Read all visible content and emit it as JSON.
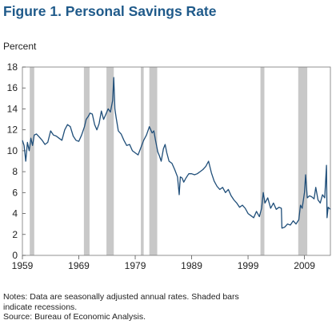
{
  "chart_data": {
    "type": "line",
    "title": "Figure 1. Personal Savings Rate",
    "ylabel": "Percent",
    "xlabel": "",
    "xlim": [
      1959,
      2013.6
    ],
    "ylim": [
      0,
      18
    ],
    "yticks": [
      0,
      2,
      4,
      6,
      8,
      10,
      12,
      14,
      16,
      18
    ],
    "xticks": [
      1959,
      1969,
      1979,
      1989,
      1999,
      2009
    ],
    "grid": false,
    "legend": "none",
    "line_color": "#1f4e79",
    "recession_color": "#c8c8c8",
    "recessions": [
      [
        1960.3,
        1961.1
      ],
      [
        1969.9,
        1970.9
      ],
      [
        1973.9,
        1975.2
      ],
      [
        1980.0,
        1980.5
      ],
      [
        1981.5,
        1982.9
      ],
      [
        2001.2,
        2001.9
      ],
      [
        2007.9,
        2009.5
      ]
    ],
    "series": [
      {
        "x": [
          1959.0,
          1959.3,
          1959.6,
          1959.9,
          1960.2,
          1960.5,
          1960.8,
          1961.1,
          1961.5,
          1962.0,
          1962.5,
          1963.0,
          1963.5,
          1964.0,
          1964.5,
          1965.0,
          1965.5,
          1966.0,
          1966.5,
          1967.0,
          1967.5,
          1968.0,
          1968.5,
          1969.0,
          1969.5,
          1970.0,
          1970.3,
          1970.7,
          1971.0,
          1971.4,
          1971.8,
          1972.2,
          1972.6,
          1973.0,
          1973.4,
          1973.8,
          1974.2,
          1974.6,
          1975.0,
          1975.2,
          1975.4,
          1975.6,
          1976.0,
          1976.5,
          1977.0,
          1977.5,
          1978.0,
          1978.5,
          1979.0,
          1979.5,
          1980.0,
          1980.5,
          1981.0,
          1981.5,
          1982.0,
          1982.3,
          1982.6,
          1983.0,
          1983.3,
          1983.6,
          1984.0,
          1984.3,
          1984.6,
          1985.0,
          1985.5,
          1986.0,
          1986.5,
          1986.8,
          1987.0,
          1987.3,
          1987.6,
          1988.0,
          1988.5,
          1989.0,
          1989.5,
          1990.0,
          1990.5,
          1991.0,
          1991.5,
          1992.0,
          1992.5,
          1993.0,
          1993.5,
          1994.0,
          1994.5,
          1995.0,
          1995.5,
          1996.0,
          1996.5,
          1997.0,
          1997.5,
          1998.0,
          1998.5,
          1999.0,
          1999.5,
          2000.0,
          2000.5,
          2001.0,
          2001.4,
          2001.7,
          2002.0,
          2002.5,
          2003.0,
          2003.5,
          2004.0,
          2004.5,
          2004.9,
          2005.0,
          2005.5,
          2006.0,
          2006.5,
          2007.0,
          2007.5,
          2008.0,
          2008.3,
          2008.6,
          2009.0,
          2009.2,
          2009.5,
          2009.9,
          2010.3,
          2010.7,
          2011.0,
          2011.4,
          2011.8,
          2012.2,
          2012.6,
          2012.9,
          2013.0,
          2013.2,
          2013.6
        ],
        "y": [
          11.0,
          10.5,
          9.0,
          10.8,
          10.0,
          11.2,
          10.5,
          11.5,
          11.6,
          11.3,
          11.0,
          10.6,
          10.8,
          11.9,
          11.5,
          11.4,
          11.2,
          11.0,
          12.0,
          12.5,
          12.3,
          11.4,
          11.0,
          10.9,
          11.5,
          12.3,
          13.0,
          13.3,
          13.6,
          13.5,
          12.5,
          12.0,
          12.6,
          13.8,
          13.0,
          13.5,
          14.0,
          13.7,
          14.8,
          17.0,
          14.0,
          13.2,
          11.9,
          11.6,
          11.0,
          10.5,
          10.6,
          10.0,
          9.8,
          9.6,
          10.3,
          11.0,
          11.5,
          12.3,
          11.7,
          11.9,
          11.0,
          9.9,
          9.5,
          9.0,
          10.2,
          10.6,
          9.8,
          9.0,
          8.8,
          8.2,
          7.5,
          5.8,
          7.5,
          7.4,
          7.0,
          7.4,
          7.8,
          7.8,
          7.7,
          7.8,
          8.0,
          8.2,
          8.5,
          9.0,
          7.9,
          7.1,
          6.6,
          6.3,
          6.5,
          6.0,
          6.3,
          5.7,
          5.3,
          5.0,
          4.6,
          4.8,
          4.5,
          4.0,
          3.8,
          3.6,
          4.2,
          3.7,
          4.5,
          6.0,
          5.0,
          5.5,
          4.5,
          5.0,
          4.4,
          4.6,
          4.5,
          2.6,
          2.7,
          3.0,
          2.9,
          3.3,
          3.0,
          3.4,
          4.8,
          4.5,
          6.0,
          7.7,
          5.5,
          5.7,
          5.6,
          5.4,
          6.5,
          5.3,
          5.0,
          5.8,
          5.5,
          8.6,
          3.6,
          4.6,
          4.4
        ]
      }
    ]
  },
  "notes": {
    "line1": "Notes: Data are seasonally adjusted annual rates. Shaded bars",
    "line2": "indicate recessions.",
    "line3": "Source: Bureau of Economic Analysis."
  }
}
